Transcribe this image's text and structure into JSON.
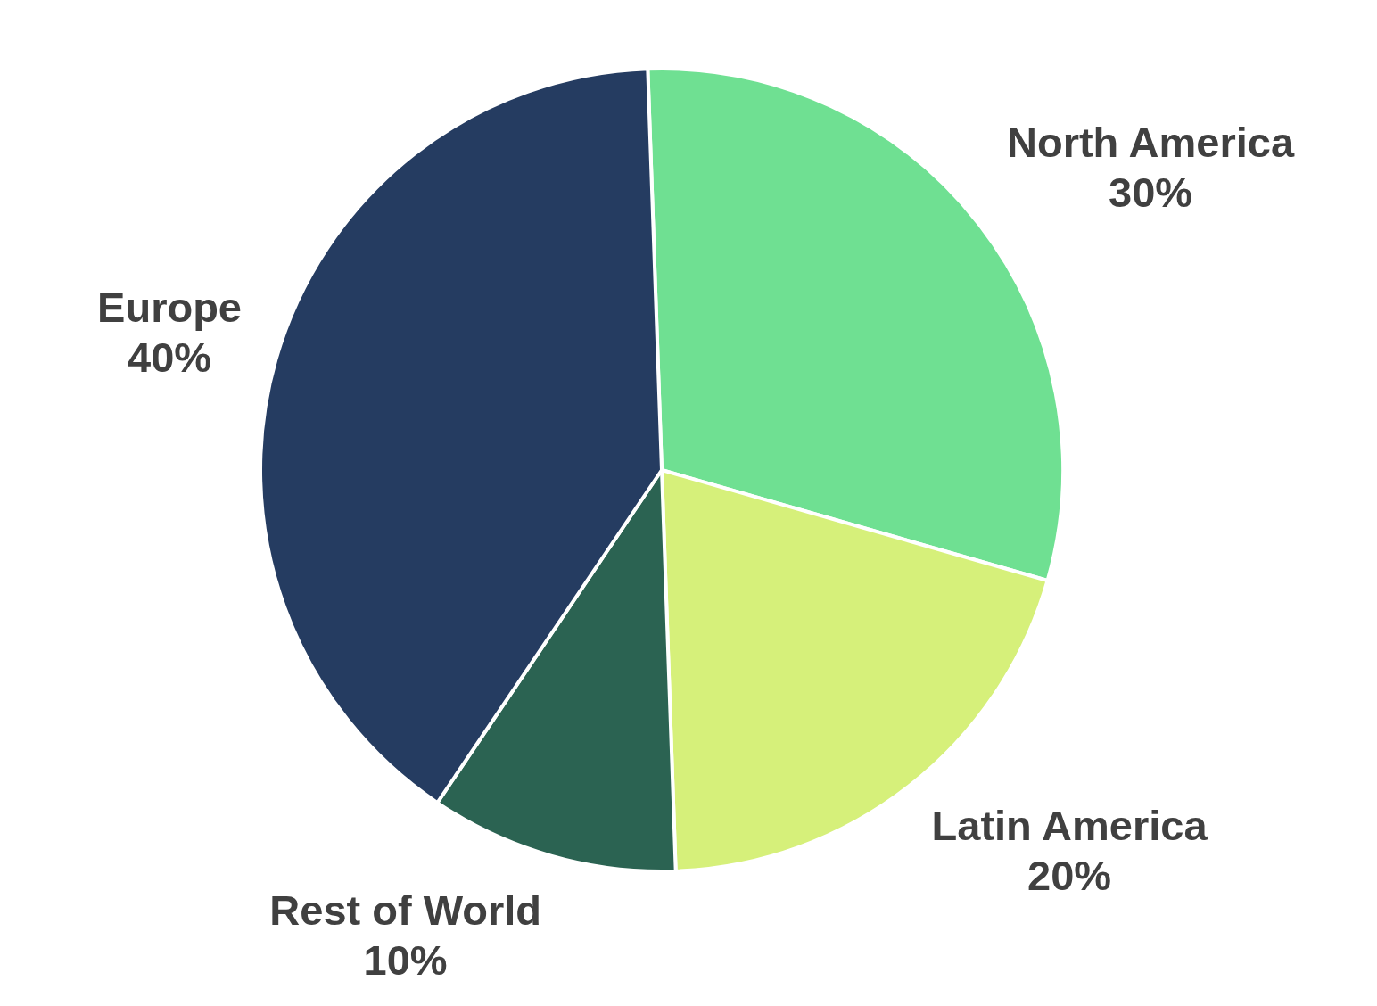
{
  "chart_data": {
    "type": "pie",
    "categories": [
      "North America",
      "Latin America",
      "Rest of World",
      "Europe"
    ],
    "values": [
      30,
      20,
      10,
      40
    ],
    "value_labels": [
      "30%",
      "20%",
      "10%",
      "40%"
    ],
    "colors": [
      "#6fe092",
      "#d6f07a",
      "#2b6352",
      "#253c61"
    ],
    "legend": false
  }
}
